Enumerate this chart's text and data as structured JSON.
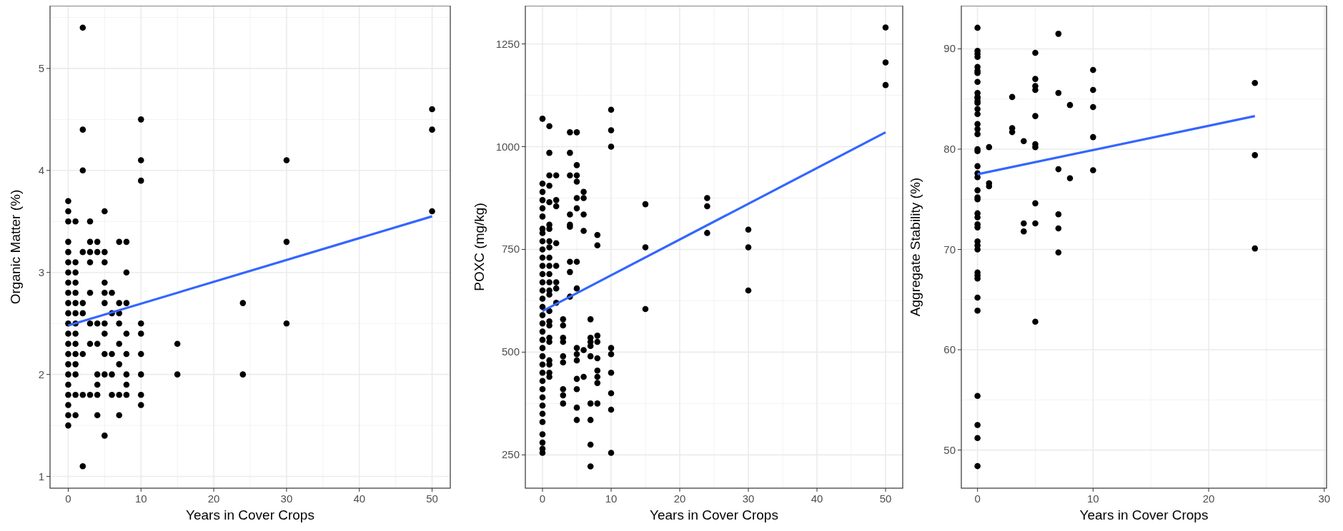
{
  "chart_data": [
    {
      "type": "scatter",
      "xlabel": "Years in Cover Crops",
      "ylabel": "Organic Matter (%)",
      "xlim": [
        -2.5,
        52.5
      ],
      "ylim": [
        0.885,
        5.615
      ],
      "xticks": [
        0,
        10,
        20,
        30,
        40,
        50
      ],
      "yticks": [
        1,
        2,
        3,
        4,
        5
      ],
      "grid": true,
      "series": [
        {
          "marker": "circle",
          "color": "#000000",
          "x": [
            0,
            0,
            0,
            0,
            0,
            0,
            0,
            0,
            0,
            0,
            0,
            0,
            0,
            0,
            0,
            0,
            0,
            0,
            0,
            0,
            0,
            0,
            1,
            1,
            1,
            1,
            1,
            1,
            1,
            1,
            1,
            1,
            1,
            1,
            1,
            1,
            1,
            2,
            2,
            2,
            2,
            2,
            2,
            2,
            2,
            2,
            3,
            3,
            3,
            3,
            3,
            3,
            3,
            3,
            4,
            4,
            4,
            4,
            4,
            4,
            4,
            4,
            5,
            5,
            5,
            5,
            5,
            5,
            5,
            5,
            5,
            5,
            5,
            6,
            6,
            6,
            6,
            6,
            7,
            7,
            7,
            7,
            7,
            7,
            7,
            7,
            8,
            8,
            8,
            8,
            8,
            8,
            8,
            8,
            10,
            10,
            10,
            10,
            10,
            10,
            10,
            10,
            10,
            15,
            15,
            24,
            24,
            30,
            30,
            30,
            50,
            50,
            50
          ],
          "values": [
            3.7,
            3.6,
            3.5,
            3.3,
            3.2,
            3.1,
            3.0,
            2.9,
            2.8,
            2.7,
            2.6,
            2.5,
            2.4,
            2.3,
            2.2,
            2.1,
            2.0,
            1.9,
            1.8,
            1.7,
            1.6,
            1.5,
            3.5,
            3.1,
            3.0,
            2.9,
            2.8,
            2.7,
            2.6,
            2.5,
            2.4,
            2.3,
            2.2,
            2.1,
            2.0,
            1.8,
            1.6,
            5.4,
            4.4,
            4.0,
            3.2,
            2.7,
            2.6,
            2.2,
            1.8,
            1.1,
            3.5,
            3.3,
            3.2,
            3.1,
            2.8,
            2.5,
            2.3,
            1.8,
            3.3,
            3.2,
            2.5,
            2.3,
            2.0,
            1.9,
            1.8,
            1.6,
            3.6,
            3.2,
            3.1,
            2.9,
            2.8,
            2.7,
            2.5,
            2.4,
            2.2,
            2.0,
            1.4,
            2.8,
            2.6,
            2.2,
            2.0,
            1.8,
            3.3,
            2.7,
            2.6,
            2.5,
            2.3,
            2.1,
            1.8,
            1.6,
            3.3,
            3.0,
            2.7,
            2.4,
            2.2,
            2.0,
            1.9,
            1.8,
            4.5,
            4.1,
            3.9,
            2.5,
            2.4,
            2.2,
            2.0,
            1.8,
            1.7,
            2.3,
            2.0,
            2.7,
            2.0,
            4.1,
            3.3,
            2.5,
            4.6,
            4.4,
            3.6
          ]
        },
        {
          "type": "line",
          "color": "#3366ff",
          "x": [
            0,
            50
          ],
          "values": [
            2.48,
            3.55
          ]
        }
      ]
    },
    {
      "type": "scatter",
      "xlabel": "Years in Cover Crops",
      "ylabel": "POXC (mg/kg)",
      "xlim": [
        -2.5,
        52.5
      ],
      "ylim": [
        169,
        1343
      ],
      "xticks": [
        0,
        10,
        20,
        30,
        40,
        50
      ],
      "yticks": [
        250,
        500,
        750,
        1000,
        1250
      ],
      "grid": true,
      "series": [
        {
          "marker": "circle",
          "color": "#000000",
          "x": [
            0,
            0,
            0,
            0,
            0,
            0,
            0,
            0,
            0,
            0,
            0,
            0,
            0,
            0,
            0,
            0,
            0,
            0,
            0,
            0,
            0,
            0,
            0,
            0,
            0,
            0,
            0,
            0,
            0,
            0,
            0,
            0,
            0,
            0,
            0,
            1,
            1,
            1,
            1,
            1,
            1,
            1,
            1,
            1,
            1,
            1,
            1,
            1,
            1,
            1,
            1,
            1,
            1,
            1,
            1,
            1,
            1,
            1,
            1,
            2,
            2,
            2,
            2,
            2,
            2,
            2,
            2,
            3,
            3,
            3,
            3,
            3,
            3,
            3,
            3,
            3,
            4,
            4,
            4,
            4,
            4,
            4,
            4,
            4,
            4,
            5,
            5,
            5,
            5,
            5,
            5,
            5,
            5,
            5,
            5,
            5,
            5,
            5,
            5,
            5,
            6,
            6,
            6,
            6,
            6,
            6,
            7,
            7,
            7,
            7,
            7,
            7,
            7,
            7,
            7,
            8,
            8,
            8,
            8,
            8,
            8,
            8,
            8,
            8,
            10,
            10,
            10,
            10,
            10,
            10,
            10,
            10,
            10,
            15,
            15,
            15,
            24,
            24,
            24,
            30,
            30,
            30,
            50,
            50,
            50
          ],
          "values": [
            1068,
            910,
            890,
            870,
            850,
            830,
            800,
            790,
            770,
            750,
            730,
            710,
            690,
            670,
            650,
            630,
            610,
            590,
            570,
            550,
            530,
            510,
            490,
            470,
            450,
            430,
            410,
            390,
            370,
            350,
            330,
            300,
            280,
            265,
            255,
            1050,
            985,
            930,
            905,
            865,
            810,
            800,
            770,
            755,
            730,
            710,
            690,
            670,
            650,
            640,
            600,
            575,
            565,
            535,
            525,
            480,
            470,
            450,
            440,
            930,
            870,
            855,
            765,
            710,
            670,
            655,
            620,
            580,
            565,
            535,
            525,
            490,
            475,
            410,
            395,
            375,
            1035,
            985,
            930,
            835,
            810,
            805,
            720,
            695,
            635,
            1035,
            955,
            930,
            915,
            875,
            850,
            720,
            655,
            510,
            495,
            480,
            435,
            410,
            365,
            335,
            890,
            875,
            835,
            795,
            505,
            440,
            580,
            535,
            525,
            515,
            490,
            375,
            335,
            275,
            222,
            785,
            760,
            540,
            525,
            485,
            455,
            440,
            425,
            375,
            1090,
            1040,
            1000,
            510,
            495,
            450,
            400,
            360,
            255,
            860,
            755,
            605,
            875,
            855,
            790,
            798,
            755,
            650,
            1290,
            1205,
            1150
          ]
        },
        {
          "type": "line",
          "color": "#3366ff",
          "x": [
            0,
            50
          ],
          "values": [
            600,
            1035
          ]
        }
      ]
    },
    {
      "type": "scatter",
      "xlabel": "Years in Cover Crops",
      "ylabel": "Aggregate Stability (%)",
      "xlim": [
        -1.4,
        30.2
      ],
      "ylim": [
        46.2,
        94.3
      ],
      "xticks": [
        0,
        10,
        20,
        30
      ],
      "yticks": [
        50,
        60,
        70,
        80,
        90
      ],
      "grid": true,
      "series": [
        {
          "marker": "circle",
          "color": "#000000",
          "x": [
            0,
            0,
            0,
            0,
            0,
            0,
            0,
            0,
            0,
            0,
            0,
            0,
            0,
            0,
            0,
            0,
            0,
            0,
            0,
            0,
            0,
            0,
            0,
            0,
            0,
            0,
            0,
            0,
            0,
            0,
            0,
            0,
            0,
            0,
            0,
            0,
            0,
            0,
            0,
            0,
            0,
            0,
            1,
            1,
            1,
            3,
            3,
            3,
            4,
            4,
            4,
            5,
            5,
            5,
            5,
            5,
            5,
            5,
            5,
            5,
            5,
            7,
            7,
            7,
            7,
            7,
            7,
            8,
            8,
            10,
            10,
            10,
            10,
            10,
            24,
            24,
            24
          ],
          "values": [
            92.1,
            89.8,
            89.5,
            89.2,
            88.2,
            87.8,
            87.6,
            86.7,
            85.6,
            85.1,
            84.6,
            84.0,
            83.5,
            82.5,
            82.0,
            81.5,
            80.0,
            79.8,
            78.3,
            77.6,
            77.2,
            75.9,
            75.2,
            75.0,
            73.6,
            73.2,
            72.5,
            72.2,
            70.8,
            70.4,
            70.0,
            67.7,
            67.4,
            67.1,
            65.2,
            63.9,
            55.4,
            52.5,
            51.2,
            48.4,
            85.2,
            84.8,
            80.2,
            76.6,
            76.3,
            85.2,
            82.1,
            81.7,
            80.8,
            72.6,
            71.8,
            89.6,
            87.0,
            86.3,
            85.9,
            83.3,
            80.5,
            80.2,
            74.6,
            72.6,
            62.8,
            91.5,
            85.6,
            78.0,
            73.5,
            72.1,
            69.7,
            84.4,
            77.1,
            87.9,
            85.9,
            84.2,
            81.2,
            77.9,
            86.6,
            79.4,
            70.1
          ]
        },
        {
          "type": "line",
          "color": "#3366ff",
          "x": [
            0,
            24
          ],
          "values": [
            77.5,
            83.3
          ]
        }
      ]
    }
  ]
}
